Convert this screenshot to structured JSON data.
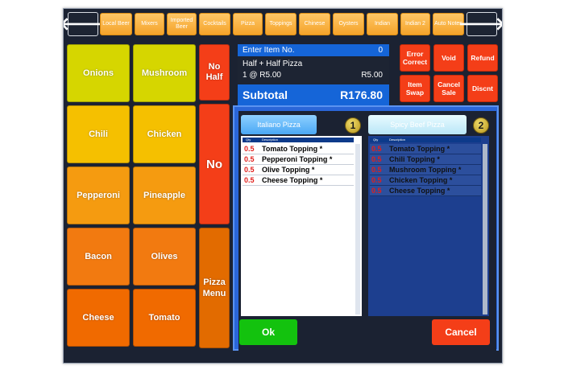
{
  "header": {
    "categories": [
      "Local Beer",
      "Mixers",
      "Imported Beer",
      "Cocktails",
      "Pizza",
      "Toppings",
      "Chinese",
      "Oysters",
      "Indian",
      "Indian 2",
      "Auto Notes"
    ],
    "back_arrow": "🡐",
    "forward_arrow": "🡒"
  },
  "toppings": [
    "Onions",
    "Mushroom",
    "Chili",
    "Chicken",
    "Pepperoni",
    "Pineapple",
    "Bacon",
    "Olives",
    "Cheese",
    "Tomato"
  ],
  "modifiers": {
    "no_half": "No Half",
    "no": "No",
    "pizza_menu": "Pizza Menu"
  },
  "entry": {
    "label": "Enter Item No.",
    "value": "0",
    "item_name": "Half + Half Pizza",
    "item_qty": "1 @ R5.00",
    "item_price": "R5.00",
    "subtotal_label": "Subtotal",
    "subtotal_value": "R176.80"
  },
  "actions": {
    "error_correct": "Error Correct",
    "void": "Void",
    "refund": "Refund",
    "item_swap": "Item Swap",
    "cancel_sale": "Cancel Sale",
    "discount": "Discnt"
  },
  "halves": [
    {
      "title": "Italiano Pizza",
      "badge": "1",
      "col_qty": "Qty",
      "col_desc": "Description",
      "items": [
        {
          "qty": "0.5",
          "desc": "Tomato Topping *"
        },
        {
          "qty": "0.5",
          "desc": "Pepperoni Topping *"
        },
        {
          "qty": "0.5",
          "desc": "Olive Topping *"
        },
        {
          "qty": "0.5",
          "desc": "Cheese Topping *"
        }
      ]
    },
    {
      "title": "Spicy Beef Pizza",
      "badge": "2",
      "col_qty": "Qty",
      "col_desc": "Description",
      "items": [
        {
          "qty": "0.5",
          "desc": "Tomato Topping *"
        },
        {
          "qty": "0.5",
          "desc": "Chili Topping *"
        },
        {
          "qty": "0.5",
          "desc": "Mushroom Topping *"
        },
        {
          "qty": "0.5",
          "desc": "Chicken Topping *"
        },
        {
          "qty": "0.5",
          "desc": "Cheese Topping *"
        }
      ]
    }
  ],
  "dialog": {
    "ok": "Ok",
    "cancel": "Cancel"
  },
  "colors": {
    "top_row1": "#d6d600",
    "top_row2": "#f5c000",
    "top_row3": "#f59b10",
    "top_row4": "#f27a10",
    "top_row5": "#f06a00",
    "accent_red": "#f43e18",
    "entry_blue": "#1565d8",
    "ok_green": "#13c20e"
  }
}
